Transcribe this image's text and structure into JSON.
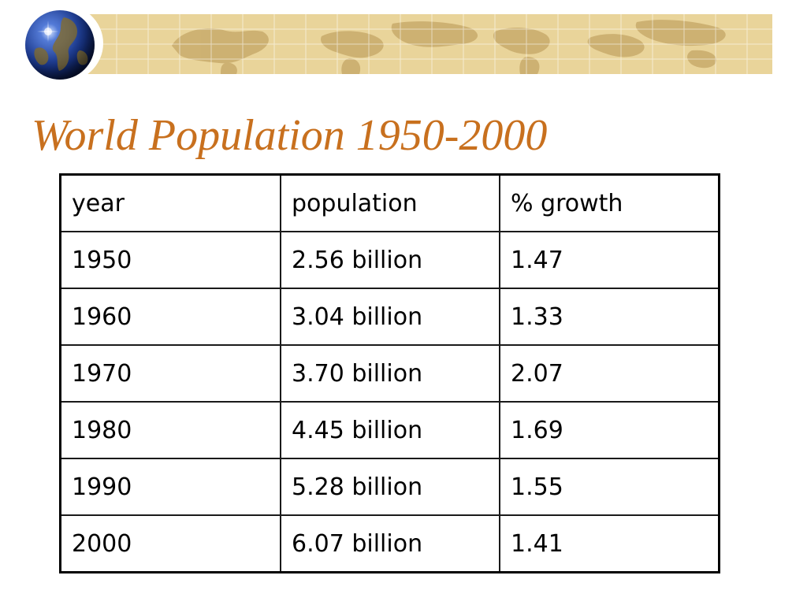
{
  "slide": {
    "title": "World Population 1950-2000"
  },
  "colors": {
    "title": "#c8701e",
    "banner": "#e9d49a",
    "banner_map": "#c8a96a",
    "grid": "#ffffff"
  },
  "table": {
    "headers": [
      "year",
      "population",
      "% growth"
    ],
    "rows": [
      [
        "1950",
        "2.56 billion",
        "1.47"
      ],
      [
        "1960",
        "3.04 billion",
        "1.33"
      ],
      [
        "1970",
        "3.70 billion",
        "2.07"
      ],
      [
        "1980",
        "4.45 billion",
        "1.69"
      ],
      [
        "1990",
        "5.28 billion",
        "1.55"
      ],
      [
        "2000",
        "6.07 billion",
        "1.41"
      ]
    ]
  },
  "decorations": {
    "globe_icon": "globe-icon",
    "banner_icon": "world-map-banner"
  }
}
